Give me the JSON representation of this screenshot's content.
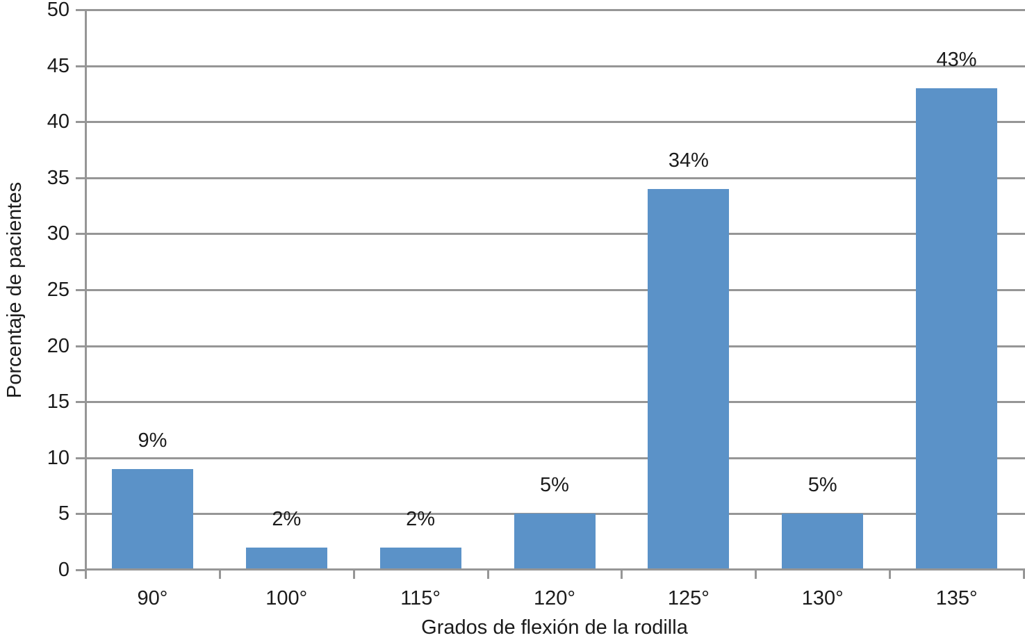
{
  "chart_data": {
    "type": "bar",
    "categories": [
      "90°",
      "100°",
      "115°",
      "120°",
      "125°",
      "130°",
      "135°"
    ],
    "values": [
      9,
      2,
      2,
      5,
      34,
      5,
      43
    ],
    "data_labels": [
      "9%",
      "2%",
      "2%",
      "5%",
      "34%",
      "5%",
      "43%"
    ],
    "title": "",
    "xlabel": "Grados de flexión de la rodilla",
    "ylabel": "Porcentaje de pacientes",
    "ylim": [
      0,
      50
    ],
    "yticks": [
      0,
      5,
      10,
      15,
      20,
      25,
      30,
      35,
      40,
      45,
      50
    ],
    "grid": "horizontal",
    "legend_position": "none",
    "colors": {
      "bar": "#5B92C8",
      "axis_and_grid": "#969696",
      "text": "#1B1B1B",
      "background": "#FFFFFF"
    }
  }
}
